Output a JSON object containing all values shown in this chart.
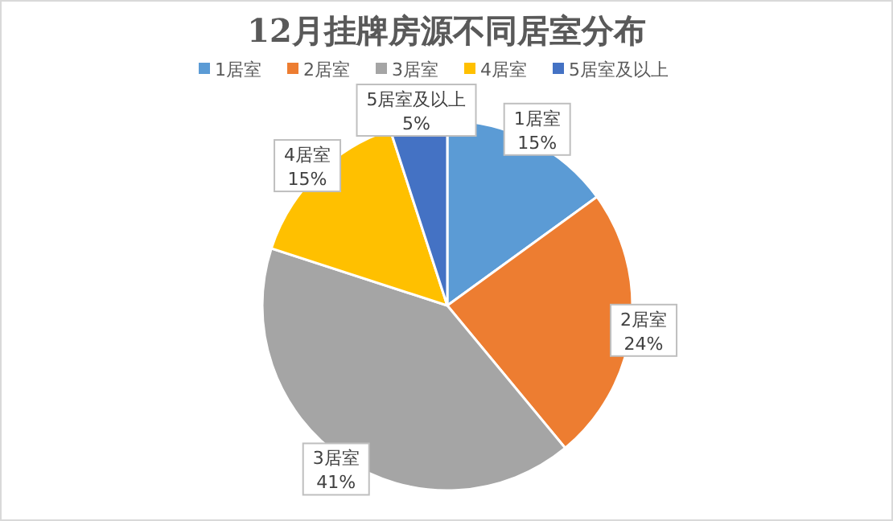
{
  "chart_data": {
    "type": "pie",
    "title": "12月挂牌房源不同居室分布",
    "categories": [
      "1居室",
      "2居室",
      "3居室",
      "4居室",
      "5居室及以上"
    ],
    "values": [
      15,
      24,
      41,
      15,
      5
    ],
    "colors": [
      "#5b9bd5",
      "#ed7d31",
      "#a5a5a5",
      "#ffc000",
      "#4472c4"
    ],
    "value_labels": [
      "15%",
      "24%",
      "41%",
      "15%",
      "5%"
    ],
    "legend": "top"
  }
}
